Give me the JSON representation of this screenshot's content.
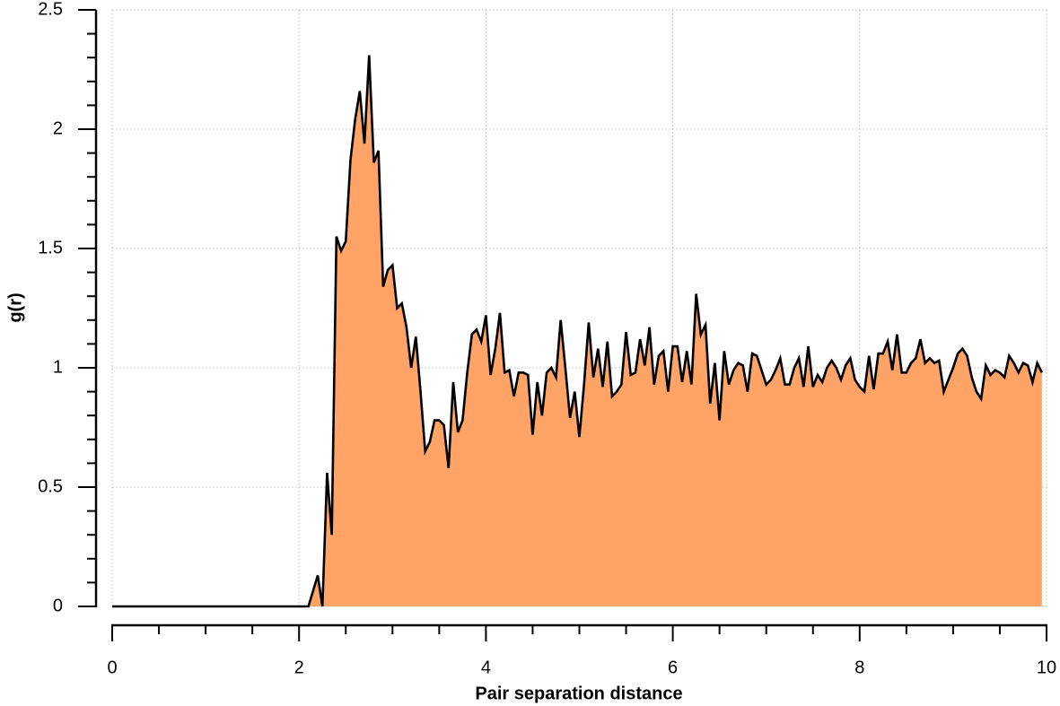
{
  "chart_data": {
    "type": "area",
    "xlabel": "Pair separation distance",
    "ylabel": "g(r)",
    "xlim": [
      0,
      10
    ],
    "ylim": [
      0,
      2.5
    ],
    "xticks": [
      0,
      2,
      4,
      6,
      8,
      10
    ],
    "yticks": [
      0,
      0.5,
      1,
      1.5,
      2,
      2.5
    ],
    "xminorticks": [
      0.5,
      1,
      1.5,
      2.5,
      3,
      3.5,
      4.5,
      5,
      5.5,
      6.5,
      7,
      7.5,
      8.5,
      9,
      9.5
    ],
    "yminorticks": [
      0.1,
      0.2,
      0.3,
      0.4,
      0.6,
      0.7,
      0.8,
      0.9,
      1.1,
      1.2,
      1.3,
      1.4,
      1.6,
      1.7,
      1.8,
      1.9,
      2.1,
      2.2,
      2.3,
      2.4
    ],
    "grid": true,
    "series": [
      {
        "color": "#ffa366",
        "line_color": "#000000",
        "x": [
          0,
          2.1,
          2.2,
          2.25,
          2.3,
          2.35,
          2.4,
          2.45,
          2.5,
          2.55,
          2.6,
          2.65,
          2.7,
          2.75,
          2.8,
          2.85,
          2.9,
          2.95,
          3.0,
          3.05,
          3.1,
          3.15,
          3.2,
          3.25,
          3.3,
          3.35,
          3.4,
          3.45,
          3.5,
          3.55,
          3.6,
          3.65,
          3.7,
          3.75,
          3.8,
          3.85,
          3.9,
          3.95,
          4.0,
          4.05,
          4.1,
          4.15,
          4.2,
          4.25,
          4.3,
          4.35,
          4.4,
          4.45,
          4.5,
          4.55,
          4.6,
          4.65,
          4.7,
          4.75,
          4.8,
          4.85,
          4.9,
          4.95,
          5.0,
          5.05,
          5.1,
          5.15,
          5.2,
          5.25,
          5.3,
          5.35,
          5.4,
          5.45,
          5.5,
          5.55,
          5.6,
          5.65,
          5.7,
          5.75,
          5.8,
          5.85,
          5.9,
          5.95,
          6.0,
          6.05,
          6.1,
          6.15,
          6.2,
          6.25,
          6.3,
          6.35,
          6.4,
          6.45,
          6.5,
          6.55,
          6.6,
          6.65,
          6.7,
          6.75,
          6.8,
          6.85,
          6.9,
          6.95,
          7.0,
          7.05,
          7.1,
          7.15,
          7.2,
          7.25,
          7.3,
          7.35,
          7.4,
          7.45,
          7.5,
          7.55,
          7.6,
          7.65,
          7.7,
          7.75,
          7.8,
          7.85,
          7.9,
          7.95,
          8.0,
          8.05,
          8.1,
          8.15,
          8.2,
          8.25,
          8.3,
          8.35,
          8.4,
          8.45,
          8.5,
          8.55,
          8.6,
          8.65,
          8.7,
          8.75,
          8.8,
          8.85,
          8.9,
          8.95,
          9.0,
          9.05,
          9.1,
          9.15,
          9.2,
          9.25,
          9.3,
          9.35,
          9.4,
          9.45,
          9.5,
          9.55,
          9.6,
          9.65,
          9.7,
          9.75,
          9.8,
          9.85,
          9.9,
          9.95
        ],
        "values": [
          0,
          0,
          0.13,
          0,
          0.56,
          0.3,
          1.55,
          1.49,
          1.53,
          1.87,
          2.04,
          2.16,
          1.94,
          2.31,
          1.86,
          1.91,
          1.34,
          1.41,
          1.43,
          1.25,
          1.27,
          1.17,
          1.0,
          1.13,
          0.9,
          0.65,
          0.69,
          0.78,
          0.78,
          0.76,
          0.58,
          0.94,
          0.73,
          0.78,
          0.98,
          1.14,
          1.16,
          1.11,
          1.22,
          0.97,
          1.08,
          1.23,
          0.98,
          0.99,
          0.88,
          0.98,
          0.98,
          0.97,
          0.72,
          0.94,
          0.8,
          0.98,
          1.0,
          0.96,
          1.2,
          1.0,
          0.79,
          0.9,
          0.71,
          0.93,
          1.19,
          0.96,
          1.08,
          0.92,
          1.11,
          0.88,
          0.9,
          0.93,
          1.15,
          0.97,
          0.98,
          1.12,
          1.01,
          1.17,
          0.93,
          1.05,
          1.07,
          0.9,
          1.09,
          1.09,
          0.94,
          1.07,
          0.93,
          1.31,
          1.14,
          1.18,
          0.85,
          1.02,
          0.78,
          1.07,
          0.93,
          0.99,
          1.02,
          1.01,
          0.9,
          1.06,
          1.05,
          0.99,
          0.93,
          0.95,
          0.99,
          1.04,
          0.93,
          0.93,
          1.0,
          1.04,
          0.92,
          1.09,
          0.92,
          0.97,
          0.94,
          1.0,
          1.03,
          1.0,
          0.95,
          1.01,
          1.04,
          0.95,
          0.92,
          0.9,
          1.05,
          0.91,
          1.06,
          1.06,
          1.11,
          0.99,
          1.14,
          0.98,
          0.98,
          1.02,
          1.04,
          1.12,
          1.02,
          1.04,
          1.02,
          1.03,
          0.9,
          0.95,
          1.0,
          1.06,
          1.08,
          1.05,
          0.96,
          0.9,
          0.87,
          1.01,
          0.97,
          0.99,
          0.98,
          0.96,
          1.05,
          1.02,
          0.98,
          1.02,
          1.01,
          0.94,
          1.02,
          0.98
        ]
      }
    ]
  }
}
